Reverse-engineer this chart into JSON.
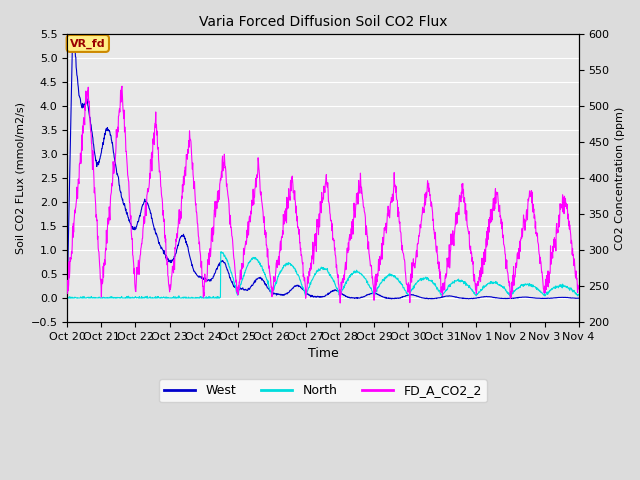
{
  "title": "Varia Forced Diffusion Soil CO2 Flux",
  "xlabel": "Time",
  "ylabel_left": "Soil CO2 FLux (mmol/m2/s)",
  "ylabel_right": "CO2 Concentration (ppm)",
  "ylim_left": [
    -0.5,
    5.5
  ],
  "ylim_right": [
    200,
    600
  ],
  "yticks_left": [
    -0.5,
    0.0,
    0.5,
    1.0,
    1.5,
    2.0,
    2.5,
    3.0,
    3.5,
    4.0,
    4.5,
    5.0,
    5.5
  ],
  "yticks_right": [
    200,
    250,
    300,
    350,
    400,
    450,
    500,
    550,
    600
  ],
  "xtick_labels": [
    "Oct 20",
    "Oct 21",
    "Oct 22",
    "Oct 23",
    "Oct 24",
    "Oct 25",
    "Oct 26",
    "Oct 27",
    "Oct 28",
    "Oct 29",
    "Oct 30",
    "Oct 31",
    "Nov 1",
    "Nov 2",
    "Nov 3",
    "Nov 4"
  ],
  "annotation_text": "VR_fd",
  "bg_color": "#dcdcdc",
  "plot_bg_color": "#e8e8e8",
  "west_color": "#0000cc",
  "north_color": "#00dddd",
  "fd_co2_color": "#ff00ff",
  "legend_labels": [
    "West",
    "North",
    "FD_A_CO2_2"
  ],
  "num_days": 15
}
